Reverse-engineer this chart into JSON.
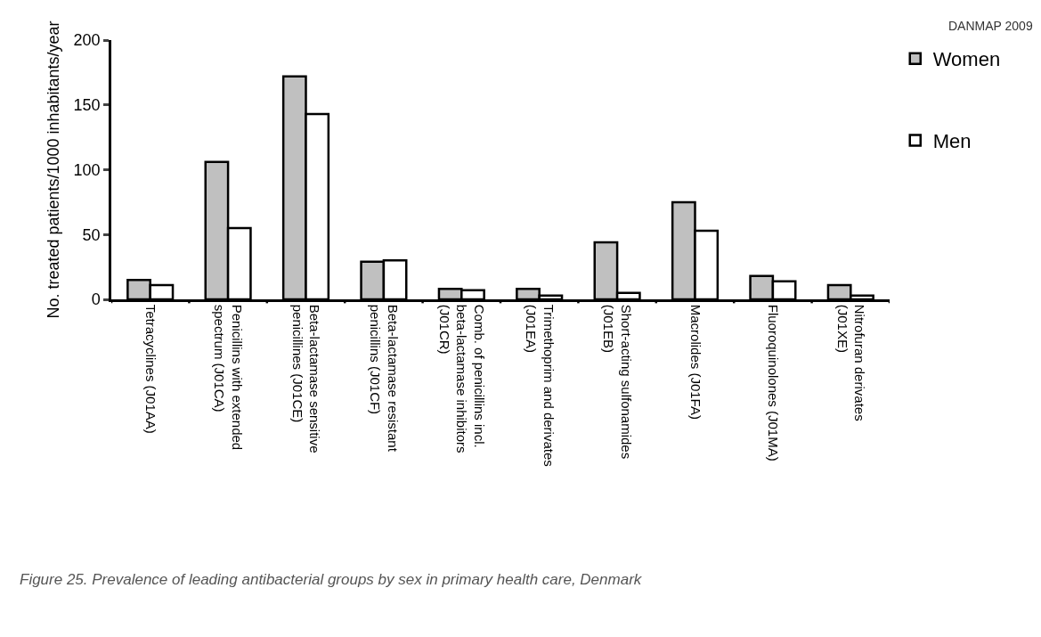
{
  "chart_data": {
    "type": "bar",
    "ylabel": "No. treated patients/1000 inhabitants/year",
    "categories": [
      "Tetracyclines (J01AA)",
      "Penicillins with extended spectrum (J01CA)",
      "Beta-lactamase sensitive penicillines (J01CE)",
      "Beta-lactamase resistant penicillins (J01CF)",
      "Comb. of penicillins incl. beta-lactamase inhibitors (J01CR)",
      "Trimethoprim and derivates (J01EA)",
      "Short-acting sulfonamides (J01EB)",
      "Macrolides (J01FA)",
      "Fluoroquinolones (J01MA)",
      "Nitrofuran derivates (J01XE)"
    ],
    "series": [
      {
        "name": "Women",
        "color": "#c0c0c0",
        "values": [
          15,
          106,
          172,
          29,
          8,
          8,
          44,
          75,
          18,
          11
        ]
      },
      {
        "name": "Men",
        "color": "#ffffff",
        "values": [
          11,
          55,
          143,
          30,
          7,
          3,
          5,
          53,
          14,
          3
        ]
      }
    ],
    "ylim": [
      0,
      200
    ],
    "yticks": [
      0,
      50,
      100,
      150,
      200
    ],
    "legend": "top right",
    "annotations": [
      "DANMAP 2009",
      "Figure 25. Prevalence of leading antibacterial groups by sex in primary health care, Denmark"
    ]
  }
}
